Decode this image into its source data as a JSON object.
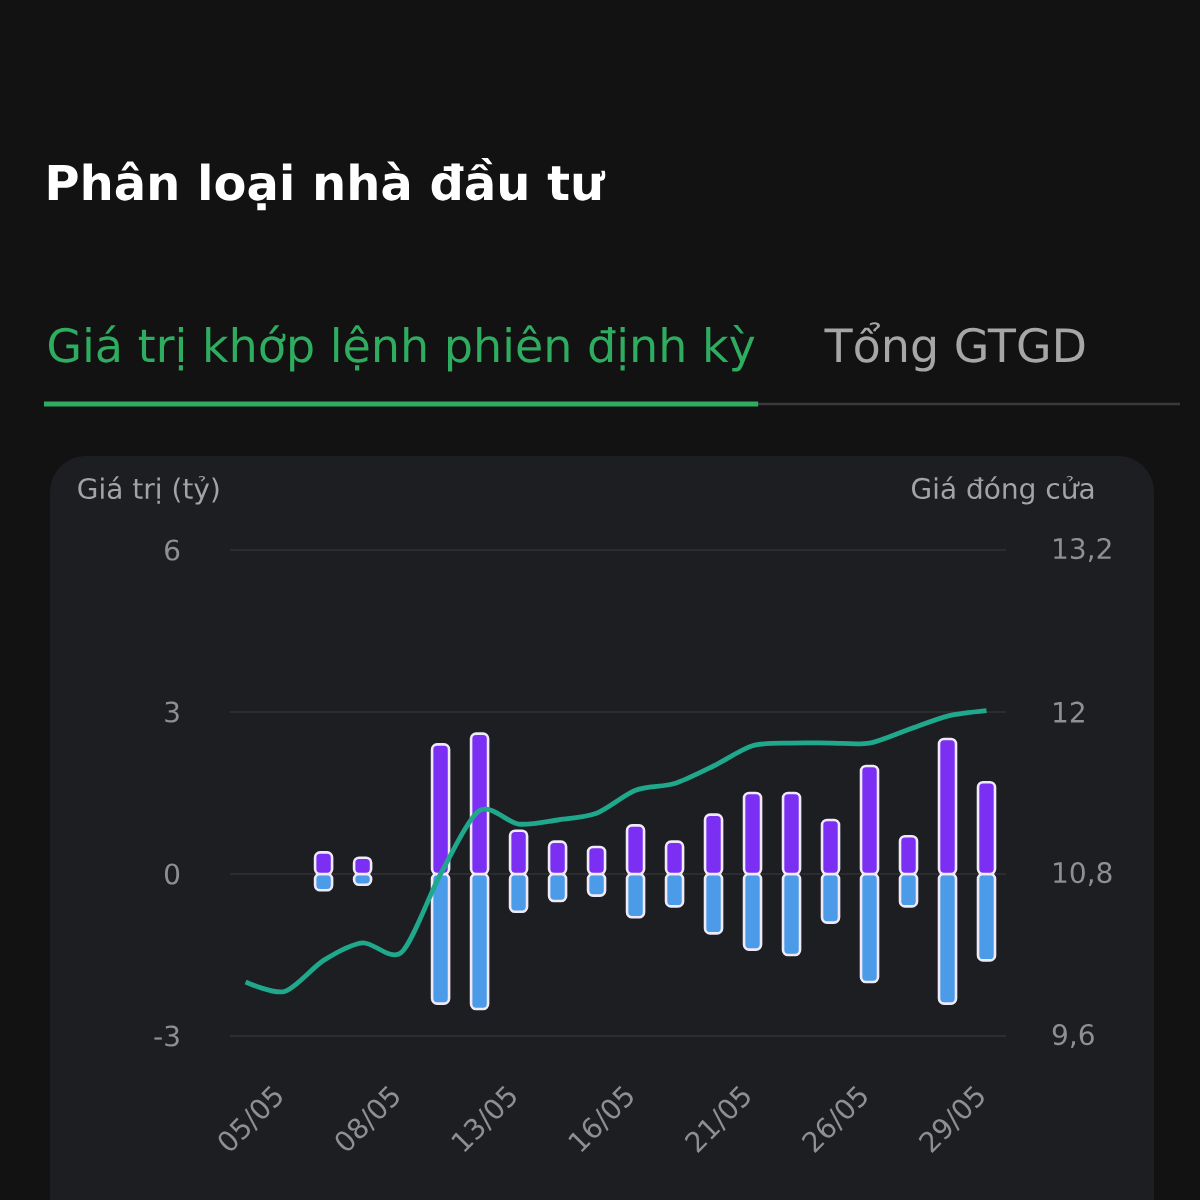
{
  "chart_data": {
    "type": "bar",
    "title": "Phân loại nhà đầu tư",
    "subtitle": "Giá trị khớp lệnh phiên định kỳ",
    "annotations": [
      "Tổng GTGD"
    ],
    "ylabel": "Giá trị (tỷ)",
    "y2label": "Giá đóng cửa",
    "categories": [
      null,
      "05/05",
      null,
      null,
      "08/05",
      null,
      null,
      "13/05",
      null,
      null,
      "16/05",
      null,
      null,
      "21/05",
      null,
      null,
      "26/05",
      null,
      null,
      "29/05"
    ],
    "series": [
      {
        "color": "#7b2ff2",
        "values": [
          null,
          0,
          0.4,
          0.3,
          0,
          2.4,
          2.6,
          0.8,
          0.6,
          0.5,
          0.9,
          0.6,
          1.1,
          1.5,
          1.5,
          1.0,
          2.0,
          0.7,
          2.5,
          1.7
        ]
      },
      {
        "color": "#4c9be8",
        "values": [
          null,
          0,
          -0.3,
          -0.2,
          0,
          -2.4,
          -2.5,
          -0.7,
          -0.5,
          -0.4,
          -0.8,
          -0.6,
          -1.1,
          -1.4,
          -1.5,
          -0.9,
          -2.0,
          -0.6,
          -2.4,
          -1.6
        ]
      },
      {
        "type": "line",
        "axis": "y2",
        "color": "#1fa88b",
        "values": [
          10.0,
          9.93,
          10.16,
          10.29,
          10.22,
          10.8,
          11.27,
          11.17,
          11.2,
          11.25,
          11.42,
          11.47,
          11.6,
          11.75,
          11.77,
          11.77,
          11.77,
          11.87,
          11.97,
          12.01
        ]
      }
    ],
    "stacked": true,
    "ylim": [
      -3,
      6
    ],
    "yticks": [
      -3,
      0,
      3,
      6
    ],
    "y2lim": [
      9.6,
      13.2
    ],
    "y2ticks": [
      {
        "value": 9.6,
        "label": "9,6"
      },
      {
        "value": 10.8,
        "label": "10,8"
      },
      12,
      {
        "value": 13.2,
        "label": "13,2"
      }
    ],
    "grid": "y"
  }
}
